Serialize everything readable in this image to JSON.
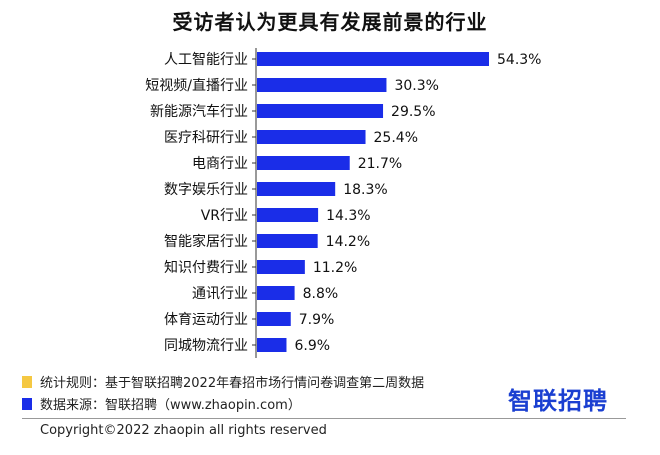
{
  "colors": {
    "bar": "#1a2de8",
    "note1_swatch": "#f5c842",
    "note2_swatch": "#1a2de8",
    "logo": "#1a3fd1"
  },
  "chart_data": {
    "type": "bar",
    "orientation": "horizontal",
    "title": "受访者认为更具有发展前景的行业",
    "categories": [
      "人工智能行业",
      "短视频/直播行业",
      "新能源汽车行业",
      "医疗科研行业",
      "电商行业",
      "数字娱乐行业",
      "VR行业",
      "智能家居行业",
      "知识付费行业",
      "通讯行业",
      "体育运动行业",
      "同城物流行业"
    ],
    "values": [
      54.3,
      30.3,
      29.5,
      25.4,
      21.7,
      18.3,
      14.3,
      14.2,
      11.2,
      8.8,
      7.9,
      6.9
    ],
    "value_labels": [
      "54.3%",
      "30.3%",
      "29.5%",
      "25.4%",
      "21.7%",
      "18.3%",
      "14.3%",
      "14.2%",
      "11.2%",
      "8.8%",
      "7.9%",
      "6.9%"
    ],
    "xlim": [
      0,
      54.3
    ],
    "grid": false
  },
  "notes": {
    "rule": "统计规则：基于智联招聘2022年春招市场行情问卷调查第二周数据",
    "source": "数据来源：智联招聘（www.zhaopin.com）"
  },
  "logo_text": "智联招聘",
  "copyright": "Copyright©2022 zhaopin all rights reserved"
}
